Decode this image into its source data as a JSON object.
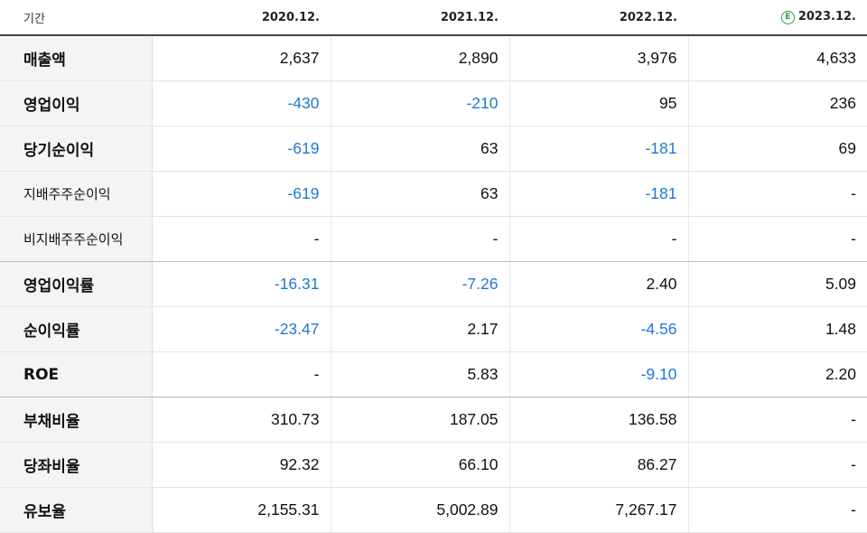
{
  "header": {
    "label": "기간",
    "periods": [
      "2020.12.",
      "2021.12.",
      "2022.12.",
      "2023.12."
    ],
    "estimate_badge": "E"
  },
  "colors": {
    "negative": "#1e78d4",
    "estimate_badge": "#1aa34a"
  },
  "rows": [
    {
      "label": "매출액",
      "values": [
        "2,637",
        "2,890",
        "3,976",
        "4,633"
      ]
    },
    {
      "label": "영업이익",
      "values": [
        "-430",
        "-210",
        "95",
        "236"
      ]
    },
    {
      "label": "당기순이익",
      "values": [
        "-619",
        "63",
        "-181",
        "69"
      ]
    },
    {
      "label": "지배주주순이익",
      "values": [
        "-619",
        "63",
        "-181",
        "-"
      ]
    },
    {
      "label": "비지배주주순이익",
      "values": [
        "-",
        "-",
        "-",
        "-"
      ]
    },
    {
      "label": "영업이익률",
      "values": [
        "-16.31",
        "-7.26",
        "2.40",
        "5.09"
      ]
    },
    {
      "label": "순이익률",
      "values": [
        "-23.47",
        "2.17",
        "-4.56",
        "1.48"
      ]
    },
    {
      "label": "ROE",
      "values": [
        "-",
        "5.83",
        "-9.10",
        "2.20"
      ]
    },
    {
      "label": "부채비율",
      "values": [
        "310.73",
        "187.05",
        "136.58",
        "-"
      ]
    },
    {
      "label": "당좌비율",
      "values": [
        "92.32",
        "66.10",
        "86.27",
        "-"
      ]
    },
    {
      "label": "유보율",
      "values": [
        "2,155.31",
        "5,002.89",
        "7,267.17",
        "-"
      ]
    }
  ]
}
